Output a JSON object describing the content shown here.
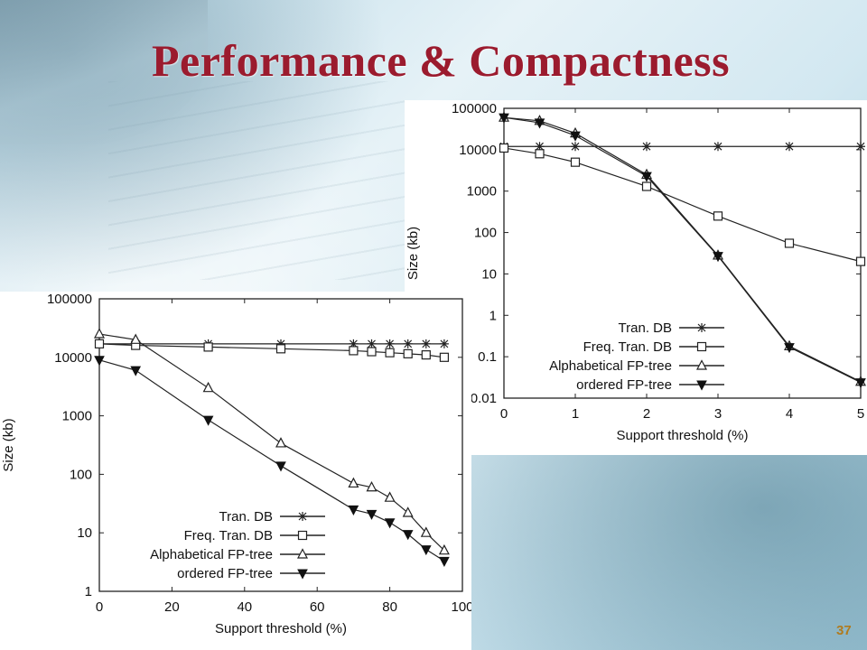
{
  "slide": {
    "title": "Performance & Compactness",
    "number": "37"
  },
  "chart_data": [
    {
      "type": "line",
      "xlabel": "Support threshold (%)",
      "ylabel": "Size (kb)",
      "yscale": "log",
      "xlim": [
        0,
        5
      ],
      "ylim": [
        0.01,
        100000
      ],
      "x_ticks": [
        "0",
        "1",
        "2",
        "3",
        "4",
        "5"
      ],
      "y_ticks": [
        "100000",
        "10000",
        "1000",
        "100",
        "10",
        "1",
        "0.1",
        "0.01"
      ],
      "legend_position": "bottom-right",
      "series": [
        {
          "name": "Tran. DB",
          "marker": "asterisk",
          "x": [
            0,
            0.5,
            1,
            2,
            3,
            4,
            5
          ],
          "values": [
            12000,
            12000,
            12000,
            12000,
            12000,
            12000,
            12000
          ]
        },
        {
          "name": "Freq. Tran. DB",
          "marker": "square",
          "x": [
            0,
            0.5,
            1,
            2,
            3,
            4,
            5
          ],
          "values": [
            11000,
            8000,
            5000,
            1300,
            250,
            55,
            20
          ]
        },
        {
          "name": "Alphabetical FP-tree",
          "marker": "triangle",
          "x": [
            0,
            0.5,
            1,
            2,
            3,
            4,
            5
          ],
          "values": [
            60000,
            50000,
            25000,
            2500,
            28,
            0.18,
            0.025
          ]
        },
        {
          "name": "ordered FP-tree",
          "marker": "triangle-down",
          "x": [
            0,
            0.5,
            1,
            2,
            3,
            4,
            5
          ],
          "values": [
            60000,
            45000,
            22000,
            2300,
            27,
            0.17,
            0.024
          ]
        }
      ]
    },
    {
      "type": "line",
      "xlabel": "Support threshold (%)",
      "ylabel": "Size (kb)",
      "yscale": "log",
      "xlim": [
        0,
        100
      ],
      "ylim": [
        1,
        100000
      ],
      "x_ticks": [
        "0",
        "20",
        "40",
        "60",
        "80",
        "100"
      ],
      "y_ticks": [
        "100000",
        "10000",
        "1000",
        "100",
        "10",
        "1"
      ],
      "legend_position": "bottom-right",
      "series": [
        {
          "name": "Tran. DB",
          "marker": "asterisk",
          "x": [
            0,
            10,
            30,
            50,
            70,
            75,
            80,
            85,
            90,
            95
          ],
          "values": [
            17000,
            17000,
            17000,
            17000,
            17000,
            17000,
            17000,
            17000,
            17000,
            17000
          ]
        },
        {
          "name": "Freq. Tran. DB",
          "marker": "square",
          "x": [
            0,
            10,
            30,
            50,
            70,
            75,
            80,
            85,
            90,
            95
          ],
          "values": [
            17000,
            16000,
            15000,
            14000,
            13000,
            12500,
            12000,
            11500,
            11000,
            10000
          ]
        },
        {
          "name": "Alphabetical FP-tree",
          "marker": "triangle",
          "x": [
            0,
            10,
            30,
            50,
            70,
            75,
            80,
            85,
            90,
            95
          ],
          "values": [
            25000,
            20000,
            3000,
            340,
            70,
            60,
            40,
            22,
            10,
            5
          ]
        },
        {
          "name": "ordered FP-tree",
          "marker": "triangle-down",
          "x": [
            0,
            10,
            30,
            50,
            70,
            75,
            80,
            85,
            90,
            95
          ],
          "values": [
            9000,
            6000,
            850,
            140,
            25,
            21,
            15,
            9.5,
            5.2,
            3.3
          ]
        }
      ]
    }
  ]
}
